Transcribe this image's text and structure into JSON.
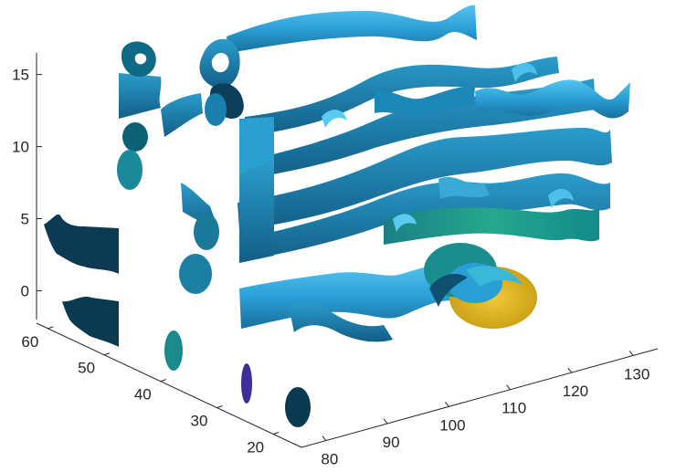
{
  "chart_data": {
    "type": "3d-streamribbon",
    "title": "",
    "xlabel": "",
    "ylabel": "",
    "zlabel": "",
    "xlim": [
      76,
      134
    ],
    "ylim": [
      15,
      62
    ],
    "zlim": [
      -2,
      16.5
    ],
    "x_ticks": [
      "80",
      "90",
      "100",
      "110",
      "120",
      "130"
    ],
    "y_ticks": [
      "20",
      "30",
      "40",
      "50",
      "60"
    ],
    "z_ticks": [
      "0",
      "5",
      "10",
      "15"
    ],
    "grid": false,
    "colormap": "parula",
    "colors": {
      "ribbon_light": "#3eaee0",
      "ribbon_mid": "#1f8fc2",
      "ribbon_dark": "#0f4f70",
      "ribbon_deep": "#0b3a52",
      "vortex_green": "#21a08a",
      "vortex_yellow": "#d9b31c",
      "slice_dark": "#0a3a50",
      "slice_purple": "#3d2f9a"
    },
    "streamribbons": [
      {
        "start_x": 80,
        "start_y": 60,
        "z": 0,
        "x_extent": [
          80,
          131
        ]
      },
      {
        "start_x": 80,
        "start_y": 60,
        "z": 5,
        "x_extent": [
          80,
          131
        ]
      },
      {
        "start_x": 80,
        "start_y": 60,
        "z": 10,
        "x_extent": [
          80,
          131
        ]
      },
      {
        "start_x": 80,
        "start_y": 60,
        "z": 15,
        "x_extent": [
          80,
          131
        ]
      }
    ],
    "slice_planes": [
      {
        "axis": "x",
        "value": 76
      },
      {
        "axis": "y",
        "value": 20
      },
      {
        "axis": "y",
        "value": 30
      },
      {
        "axis": "y",
        "value": 40
      },
      {
        "axis": "y",
        "value": 50
      },
      {
        "axis": "y",
        "value": 60
      }
    ]
  }
}
